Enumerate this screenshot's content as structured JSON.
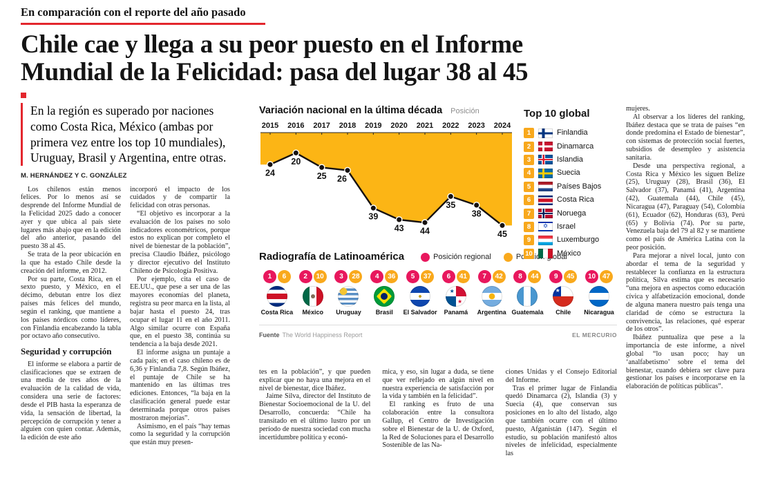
{
  "colors": {
    "accent_red": "#E3262D",
    "chart_yellow": "#FCB515",
    "regional_pink": "#E8175D",
    "global_yellow": "#F9A91C"
  },
  "kicker": "En comparación con el reporte del año pasado",
  "headline": {
    "line1": "Chile cae y llega a su peor puesto en el Informe",
    "line2": "Mundial de la Felicidad: pasa del lugar 38 al 45"
  },
  "lead": "En la región es superado por naciones como Costa Rica, México (ambas por primera vez entre los top 10 mundiales), Uruguay, Brasil y Argentina, entre otras.",
  "byline": "M. HERNÁNDEZ Y C. GONZÁLEZ",
  "article": {
    "col1": [
      {
        "t": "p",
        "text": "Los chilenos están menos felices. Por lo menos así se desprende del Informe Mundial de la Felicidad 2025 dado a conocer ayer y que ubica al país siete lugares más abajo que en la edición del año anterior, pasando del puesto 38 al 45."
      },
      {
        "t": "p",
        "text": "Se trata de la peor ubicación en la que ha estado Chile desde la creación del informe, en 2012."
      },
      {
        "t": "p",
        "text": "Por su parte, Costa Rica, en el sexto puesto, y México, en el décimo, debutan entre los diez países más felices del mundo, según el ranking, que mantiene a los países nórdicos como líderes, con Finlandia encabezando la tabla por octavo año consecutivo."
      },
      {
        "t": "h2",
        "text": "Seguridad y corrupción"
      },
      {
        "t": "p",
        "text": "El informe se elabora a partir de clasificaciones que se extraen de una media de tres años de la evaluación de la calidad de vida, considera una serie de factores: desde el PIB hasta la esperanza de vida, la sensación de libertad, la percepción de corrupción y tener a alguien con quien contar. Además, la edición de este año"
      }
    ],
    "col2": [
      {
        "t": "pc",
        "text": "incorporó el impacto de los cuidados y de compartir la felicidad con otras personas."
      },
      {
        "t": "p",
        "text": "“El objetivo es incorporar a la evaluación de los países no solo indicadores econométricos, porque estos no explican por completo el nivel de bienestar de la población”, precisa Claudio Ibáñez, psicólogo y director ejecutivo del Instituto Chileno de Psicología Positiva."
      },
      {
        "t": "p",
        "text": "Por ejemplo, cita el caso de EE.UU., que pese a ser una de las mayores economías del planeta, registra su peor marca en la lista, al bajar hasta el puesto 24, tras ocupar el lugar 11 en el año 2011. Algo similar ocurre con España que, en el puesto 38, continúa su tendencia a la baja desde 2021."
      },
      {
        "t": "p",
        "text": "El informe asigna un puntaje a cada país; en el caso chileno es de 6,36 y Finlandia 7,8. Según Ibáñez, el puntaje de Chile se ha mantenido en las últimas tres ediciones. Entonces, “la baja en la clasificación general puede estar determinada porque otros países mostraron mejorías”."
      },
      {
        "t": "p",
        "text": "Asimismo, en el país “hay temas como la seguridad y la corrupción que están muy presen-"
      }
    ],
    "col3": [
      {
        "t": "pc",
        "text": "tes en la población”, y que pueden explicar que no haya una mejora en el nivel de bienestar, dice Ibáñez."
      },
      {
        "t": "p",
        "text": "Jaime Silva, director del Instituto de Bienestar Socioemocional de la U. del Desarrollo, concuerda: “Chile ha transitado en el último lustro por un período de nuestra sociedad con mucha incertidumbre política y econó-"
      }
    ],
    "col4": [
      {
        "t": "pc",
        "text": "mica, y eso, sin lugar a duda, se tiene que ver reflejado en algún nivel en nuestra experiencia de satisfacción por la vida y también en la felicidad”."
      },
      {
        "t": "p",
        "text": "El ranking es fruto de una colaboración entre la consultora Gallup, el Centro de Investigación sobre el Bienestar de la U. de Oxford, la Red de Soluciones para el Desarrollo Sostenible de las Na-"
      }
    ],
    "col5": [
      {
        "t": "pc",
        "text": "ciones Unidas y el Consejo Editorial del Informe."
      },
      {
        "t": "p",
        "text": "Tras el primer lugar de Finlandia quedó Dinamarca (2), Islandia (3) y Suecia (4), que conservan sus posiciones en lo alto del listado, algo que también ocurre con el último puesto, Afganistán (147). Según el estudio, su población manifestó altos niveles de infelicidad, especialmente las"
      }
    ],
    "rail": [
      {
        "t": "pc",
        "text": "mujeres."
      },
      {
        "t": "p",
        "text": "Al observar a los líderes del ranking, Ibáñez destaca que se trata de países “en donde predomina el Estado de bienestar”, con sistemas de protección social fuertes, subsidios de desempleo y asistencia sanitaria."
      },
      {
        "t": "p",
        "text": "Desde una perspectiva regional, a Costa Rica y México les siguen Belize (25), Uruguay (28), Brasil (36), El Salvador (37), Panamá (41), Argentina (42), Guatemala (44), Chile (45), Nicaragua (47), Paraguay (54), Colombia (61), Ecuador (62), Honduras (63), Perú (65) y Bolivia (74). Por su parte, Venezuela baja del 79 al 82 y se mantiene como el país de América Latina con la peor posición."
      },
      {
        "t": "p",
        "text": "Para mejorar a nivel local, junto con abordar el tema de la seguridad y restablecer la confianza en la estructura política, Silva estima que es necesario “una mejora en aspectos como educación cívica y alfabetización emocional, donde de alguna manera nuestro país tenga una claridad de cómo se estructura la convivencia, las relaciones, qué esperar de los otros”."
      },
      {
        "t": "p",
        "text": "Ibáñez puntualiza que pese a la importancia de este informe, a nivel global “lo usan poco; hay un ‘analfabetismo’ sobre el tema del bienestar, cuando debiera ser clave para gestionar los países e incorporarse en la elaboración de políticas públicas”."
      }
    ]
  },
  "chart_data": {
    "type": "line",
    "title": "Variación nacional en la última década",
    "ylabel": "Posición",
    "x": [
      "2015",
      "2016",
      "2017",
      "2018",
      "2019",
      "2020",
      "2021",
      "2022",
      "2023",
      "2024"
    ],
    "values": [
      24,
      20,
      25,
      26,
      39,
      43,
      44,
      35,
      38,
      45
    ],
    "y_inverted": true,
    "area_color": "#FCB515",
    "line_color": "#161110",
    "grid": false,
    "legend_position": "none"
  },
  "infographic": {
    "top10": {
      "title": "Top 10 global",
      "items": [
        {
          "rank": "1",
          "country": "Finlandia",
          "flag": "fi"
        },
        {
          "rank": "2",
          "country": "Dinamarca",
          "flag": "dk"
        },
        {
          "rank": "3",
          "country": "Islandia",
          "flag": "is"
        },
        {
          "rank": "4",
          "country": "Suecia",
          "flag": "se"
        },
        {
          "rank": "5",
          "country": "Países Bajos",
          "flag": "nl"
        },
        {
          "rank": "6",
          "country": "Costa Rica",
          "flag": "cr"
        },
        {
          "rank": "7",
          "country": "Noruega",
          "flag": "no"
        },
        {
          "rank": "8",
          "country": "Israel",
          "flag": "il"
        },
        {
          "rank": "9",
          "country": "Luxemburgo",
          "flag": "lu"
        },
        {
          "rank": "10",
          "country": "México",
          "flag": "mx"
        }
      ]
    },
    "radiografia": {
      "title": "Radiografía de Latinoamérica",
      "legend": [
        {
          "label": "Posición regional",
          "color": "#E8175D"
        },
        {
          "label": "Posición global",
          "color": "#F9A91C"
        }
      ],
      "countries": [
        {
          "name": "Costa Rica",
          "regional": "1",
          "global": "6",
          "flag": "cr"
        },
        {
          "name": "México",
          "regional": "2",
          "global": "10",
          "flag": "mx"
        },
        {
          "name": "Uruguay",
          "regional": "3",
          "global": "28",
          "flag": "uy"
        },
        {
          "name": "Brasil",
          "regional": "4",
          "global": "36",
          "flag": "br"
        },
        {
          "name": "El Salvador",
          "regional": "5",
          "global": "37",
          "flag": "sv"
        },
        {
          "name": "Panamá",
          "regional": "6",
          "global": "41",
          "flag": "pa"
        },
        {
          "name": "Argentina",
          "regional": "7",
          "global": "42",
          "flag": "ar"
        },
        {
          "name": "Guatemala",
          "regional": "8",
          "global": "44",
          "flag": "gt"
        },
        {
          "name": "Chile",
          "regional": "9",
          "global": "45",
          "flag": "cl"
        },
        {
          "name": "Nicaragua",
          "regional": "10",
          "global": "47",
          "flag": "ni"
        }
      ]
    },
    "source_label": "Fuente",
    "source": "The World Happiness Report",
    "credit": "EL MERCURIO"
  }
}
